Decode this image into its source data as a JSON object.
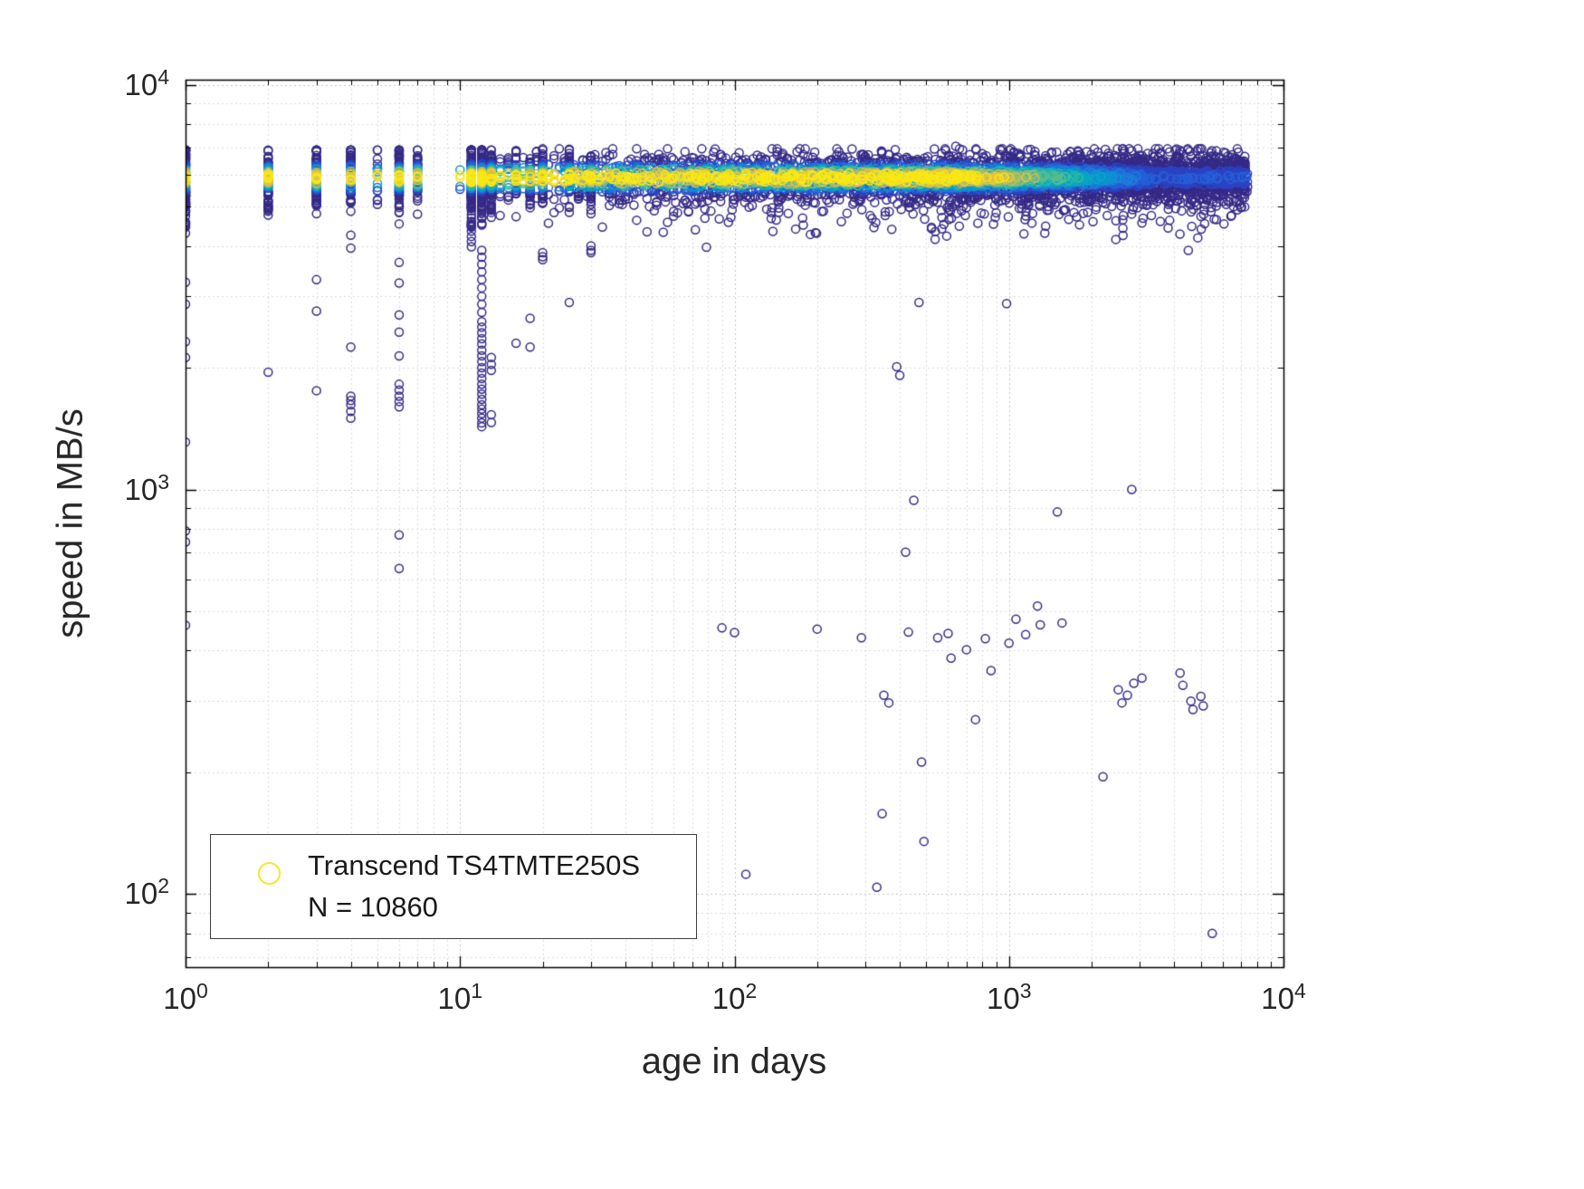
{
  "figure": {
    "background": "#ffffff",
    "axis_color": "#000000"
  },
  "chart_data": {
    "type": "scatter",
    "title": "",
    "xlabel": "age in days",
    "ylabel": "speed in MB/s",
    "x_scale": "log",
    "y_scale": "log",
    "xlim": [
      1,
      10000
    ],
    "ylim": [
      66,
      10300
    ],
    "x_ticks": [
      {
        "value": 1,
        "base": "10",
        "exp": "0"
      },
      {
        "value": 10,
        "base": "10",
        "exp": "1"
      },
      {
        "value": 100,
        "base": "10",
        "exp": "2"
      },
      {
        "value": 1000,
        "base": "10",
        "exp": "3"
      },
      {
        "value": 10000,
        "base": "10",
        "exp": "4"
      }
    ],
    "y_ticks": [
      {
        "value": 100,
        "base": "10",
        "exp": "2"
      },
      {
        "value": 1000,
        "base": "10",
        "exp": "3"
      },
      {
        "value": 10000,
        "base": "10",
        "exp": "4"
      }
    ],
    "grid": {
      "show_major": true,
      "show_minor": true,
      "major_color": "#c7c7c7",
      "minor_color": "#dcdcdc",
      "line_style": "dotted"
    },
    "legend": {
      "series": "Transcend TS4TMTE250S",
      "count": "N = 10860",
      "marker_color": "#f2e92c",
      "position": "southwest"
    },
    "marker": {
      "shape": "open-circle",
      "radius_px": 4.5,
      "stroke_px": 1.5
    },
    "colormap": [
      "#352a87",
      "#2c43c3",
      "#2461d8",
      "#1b7ed8",
      "#0f93d2",
      "#07a9c2",
      "#27b8a6",
      "#5cbe8b",
      "#98bd70",
      "#cdba59",
      "#edc832",
      "#f9e815"
    ],
    "density_encoding": "marker color encodes local sample density (dark blue = low, yellow = high)",
    "band": {
      "x_min": 9,
      "x_max": 7400,
      "n": 4200,
      "y_center": 5900,
      "y_sigma_log10": 0.03,
      "x_skew": 0.62,
      "drop_prob": 0.05,
      "y_max_clip": 6950
    },
    "age_columns": [
      {
        "x": 1,
        "n": 150,
        "y_center": 5850,
        "y_sigma": 0.05,
        "tail": [
          4300,
          3250,
          2870,
          2320,
          2120,
          1310,
          790,
          742,
          462
        ]
      },
      {
        "x": 2,
        "n": 70,
        "y_center": 5900,
        "y_sigma": 0.04,
        "tail": [
          1950
        ]
      },
      {
        "x": 3,
        "n": 85,
        "y_center": 5900,
        "y_sigma": 0.045,
        "tail": [
          3300,
          2760,
          1755
        ]
      },
      {
        "x": 4,
        "n": 60,
        "y_center": 5850,
        "y_sigma": 0.04,
        "tail": [
          4250,
          3950,
          2250,
          1700,
          1660,
          1620,
          1560,
          1500
        ]
      },
      {
        "x": 5,
        "n": 22,
        "y_center": 5900,
        "y_sigma": 0.03,
        "tail": []
      },
      {
        "x": 6,
        "n": 90,
        "y_center": 5850,
        "y_sigma": 0.045,
        "tail": [
          3640,
          3240,
          2700,
          2450,
          2140,
          1820,
          1760,
          1700,
          1650,
          1600,
          772,
          638
        ]
      },
      {
        "x": 7,
        "n": 45,
        "y_center": 5900,
        "y_sigma": 0.035,
        "tail": []
      },
      {
        "x": 11,
        "n": 150,
        "y_center": 5800,
        "y_sigma": 0.05,
        "tail": [
          4600,
          4480,
          4350,
          4220,
          4100,
          3980
        ]
      },
      {
        "x": 12,
        "n": 150,
        "y_center": 5800,
        "y_sigma": 0.05,
        "tail": [
          3900,
          3750,
          3600,
          3450,
          3300,
          3150,
          3000,
          2870,
          2740,
          2600,
          2520,
          2440,
          2360,
          2290,
          2210,
          2140,
          2070,
          2000,
          1940,
          1880,
          1820,
          1770,
          1720,
          1670,
          1620,
          1580,
          1540,
          1500,
          1460,
          1430
        ]
      },
      {
        "x": 13,
        "n": 95,
        "y_center": 5850,
        "y_sigma": 0.045,
        "tail": [
          2120,
          2040,
          1970,
          1530,
          1465
        ]
      },
      {
        "x": 16,
        "n": 30,
        "y_center": 5900,
        "y_sigma": 0.03,
        "tail": [
          2300
        ]
      },
      {
        "x": 18,
        "n": 32,
        "y_center": 5900,
        "y_sigma": 0.03,
        "tail": [
          2650,
          2250
        ]
      },
      {
        "x": 20,
        "n": 38,
        "y_center": 5900,
        "y_sigma": 0.035,
        "tail": [
          3850,
          3760,
          3700
        ]
      },
      {
        "x": 25,
        "n": 36,
        "y_center": 5900,
        "y_sigma": 0.03,
        "tail": [
          2900
        ]
      },
      {
        "x": 30,
        "n": 42,
        "y_center": 5880,
        "y_sigma": 0.035,
        "tail": [
          4000,
          3900,
          3850
        ]
      }
    ],
    "outliers": [
      [
        90,
        455
      ],
      [
        100,
        443
      ],
      [
        110,
        112
      ],
      [
        200,
        452
      ],
      [
        290,
        430
      ],
      [
        330,
        104
      ],
      [
        345,
        158
      ],
      [
        350,
        310
      ],
      [
        365,
        297
      ],
      [
        390,
        2010
      ],
      [
        400,
        1915
      ],
      [
        420,
        700
      ],
      [
        430,
        444
      ],
      [
        450,
        940
      ],
      [
        470,
        2900
      ],
      [
        480,
        212
      ],
      [
        490,
        135
      ],
      [
        550,
        430
      ],
      [
        600,
        441
      ],
      [
        615,
        383
      ],
      [
        640,
        7050
      ],
      [
        700,
        402
      ],
      [
        755,
        270
      ],
      [
        820,
        428
      ],
      [
        860,
        357
      ],
      [
        980,
        2880
      ],
      [
        1000,
        417
      ],
      [
        1060,
        478
      ],
      [
        1150,
        438
      ],
      [
        1270,
        515
      ],
      [
        1300,
        463
      ],
      [
        1350,
        4300
      ],
      [
        1500,
        880
      ],
      [
        1560,
        468
      ],
      [
        1650,
        4650
      ],
      [
        2200,
        195
      ],
      [
        2450,
        4150
      ],
      [
        2500,
        320
      ],
      [
        2580,
        297
      ],
      [
        2700,
        310
      ],
      [
        2800,
        1000
      ],
      [
        2850,
        332
      ],
      [
        3050,
        342
      ],
      [
        4200,
        352
      ],
      [
        4300,
        328
      ],
      [
        4500,
        3900
      ],
      [
        4600,
        300
      ],
      [
        4680,
        286
      ],
      [
        5000,
        308
      ],
      [
        5100,
        292
      ],
      [
        5500,
        80
      ],
      [
        7400,
        5600
      ]
    ]
  }
}
